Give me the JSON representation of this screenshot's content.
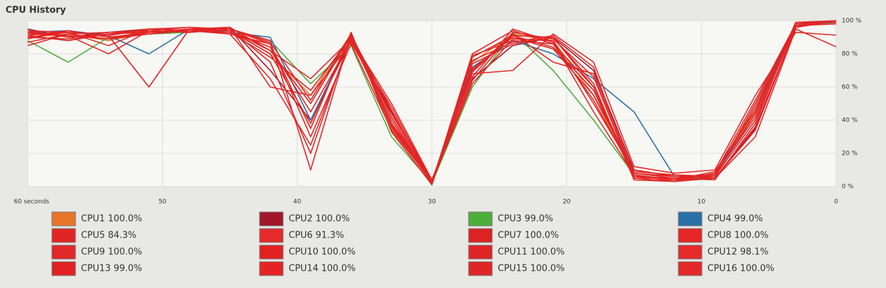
{
  "chart_data": {
    "type": "line",
    "title": "CPU History",
    "x": [
      60,
      57,
      54,
      51,
      48,
      45,
      42,
      39,
      36,
      33,
      30,
      27,
      24,
      21,
      18,
      15,
      12,
      9,
      6,
      3,
      0
    ],
    "xlim": [
      60,
      0
    ],
    "xticks": [
      {
        "value": 60,
        "label": "60 seconds"
      },
      50,
      40,
      30,
      20,
      10,
      0
    ],
    "ylim": [
      0,
      100
    ],
    "yticks": [
      {
        "value": 0,
        "label": "0 %"
      },
      {
        "value": 20,
        "label": "20 %"
      },
      {
        "value": 40,
        "label": "40 %"
      },
      {
        "value": 60,
        "label": "60 %"
      },
      {
        "value": 80,
        "label": "80 %"
      },
      {
        "value": 100,
        "label": "100 %"
      }
    ],
    "grid": true,
    "series": [
      {
        "name": "CPU1 100.0%",
        "color": "#e8742a",
        "values": [
          90,
          92,
          88,
          93,
          95,
          94,
          80,
          55,
          92,
          35,
          2,
          75,
          92,
          88,
          55,
          6,
          4,
          8,
          45,
          98,
          100
        ]
      },
      {
        "name": "CPU2 100.0%",
        "color": "#a3172a",
        "values": [
          95,
          90,
          93,
          95,
          94,
          96,
          70,
          40,
          88,
          45,
          3,
          65,
          85,
          90,
          70,
          10,
          6,
          5,
          35,
          96,
          100
        ]
      },
      {
        "name": "CPU3 99.0%",
        "color": "#4caf3a",
        "values": [
          88,
          75,
          90,
          92,
          93,
          95,
          88,
          62,
          85,
          30,
          2,
          60,
          93,
          70,
          40,
          7,
          4,
          6,
          50,
          97,
          99
        ]
      },
      {
        "name": "CPU4 99.0%",
        "color": "#2a6fa8",
        "values": [
          93,
          94,
          91,
          80,
          95,
          93,
          90,
          40,
          90,
          38,
          3,
          72,
          88,
          80,
          65,
          45,
          6,
          7,
          42,
          98,
          99
        ]
      },
      {
        "name": "CPU5 84.3%",
        "color": "#e02424",
        "values": [
          85,
          92,
          89,
          94,
          93,
          95,
          75,
          20,
          91,
          42,
          2,
          80,
          94,
          86,
          60,
          5,
          3,
          5,
          30,
          95,
          84.3
        ]
      },
      {
        "name": "CPU6 91.3%",
        "color": "#e42a2a",
        "values": [
          94,
          93,
          85,
          95,
          96,
          94,
          82,
          65,
          89,
          50,
          4,
          68,
          70,
          92,
          75,
          12,
          8,
          10,
          55,
          93,
          91.3
        ]
      },
      {
        "name": "CPU7 100.0%",
        "color": "#dd2222",
        "values": [
          91,
          88,
          92,
          93,
          94,
          92,
          86,
          35,
          93,
          33,
          1,
          78,
          91,
          84,
          58,
          6,
          5,
          4,
          38,
          99,
          100
        ]
      },
      {
        "name": "CPU8 100.0%",
        "color": "#e62626",
        "values": [
          89,
          94,
          90,
          92,
          95,
          96,
          60,
          55,
          87,
          44,
          3,
          62,
          89,
          88,
          50,
          9,
          7,
          6,
          48,
          97,
          100
        ]
      },
      {
        "name": "CPU9 100.0%",
        "color": "#e02828",
        "values": [
          92,
          91,
          80,
          94,
          93,
          95,
          88,
          10,
          92,
          36,
          2,
          74,
          86,
          90,
          62,
          4,
          3,
          8,
          52,
          98,
          100
        ]
      },
      {
        "name": "CPU10 100.0%",
        "color": "#e32020",
        "values": [
          90,
          93,
          91,
          60,
          95,
          94,
          84,
          45,
          88,
          48,
          3,
          70,
          92,
          75,
          68,
          8,
          6,
          5,
          34,
          96,
          100
        ]
      },
      {
        "name": "CPU11 100.0%",
        "color": "#df2525",
        "values": [
          94,
          90,
          92,
          95,
          94,
          93,
          78,
          58,
          90,
          40,
          2,
          66,
          95,
          87,
          45,
          7,
          4,
          9,
          46,
          98,
          100
        ]
      },
      {
        "name": "CPU12 98.1%",
        "color": "#e52a2a",
        "values": [
          87,
          92,
          93,
          94,
          96,
          95,
          86,
          30,
          86,
          34,
          3,
          76,
          87,
          91,
          72,
          5,
          5,
          6,
          40,
          97,
          98.1
        ]
      },
      {
        "name": "CPU13 99.0%",
        "color": "#e02222",
        "values": [
          93,
          91,
          89,
          92,
          94,
          96,
          82,
          50,
          91,
          46,
          2,
          71,
          90,
          83,
          55,
          10,
          6,
          7,
          44,
          99,
          99
        ]
      },
      {
        "name": "CPU14 100.0%",
        "color": "#e42424",
        "values": [
          91,
          94,
          90,
          93,
          95,
          92,
          65,
          25,
          89,
          38,
          4,
          64,
          93,
          89,
          66,
          6,
          4,
          5,
          36,
          96,
          100
        ]
      },
      {
        "name": "CPU15 100.0%",
        "color": "#de2626",
        "values": [
          90,
          89,
          92,
          94,
          93,
          95,
          87,
          52,
          92,
          42,
          2,
          79,
          88,
          86,
          52,
          8,
          5,
          6,
          50,
          98,
          100
        ]
      },
      {
        "name": "CPU16 100.0%",
        "color": "#e22828",
        "values": [
          92,
          93,
          91,
          95,
          94,
          94,
          80,
          38,
          90,
          37,
          3,
          69,
          91,
          90,
          60,
          7,
          3,
          8,
          42,
          97,
          100
        ]
      }
    ]
  }
}
